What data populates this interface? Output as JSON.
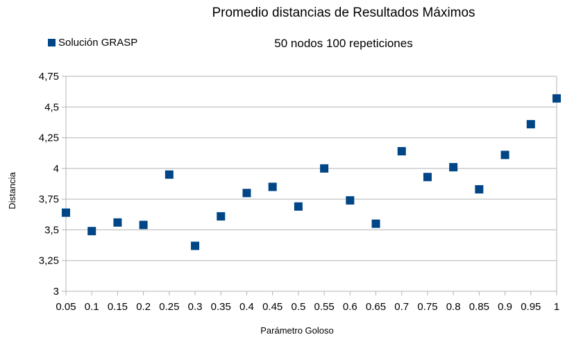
{
  "chart_data": {
    "type": "scatter",
    "title": "Promedio distancias de Resultados Máximos",
    "subtitle": "50 nodos 100 repeticiones",
    "xlabel": "Parámetro Goloso",
    "ylabel": "Distancia",
    "categories": [
      "0.05",
      "0.1",
      "0.15",
      "0.2",
      "0.25",
      "0.3",
      "0.35",
      "0.4",
      "0.45",
      "0.5",
      "0.55",
      "0.6",
      "0.65",
      "0.7",
      "0.75",
      "0.8",
      "0.85",
      "0.9",
      "0.95",
      "1"
    ],
    "yticks": [
      "3",
      "3,25",
      "3,5",
      "3,75",
      "4",
      "4,25",
      "4,5",
      "4,75"
    ],
    "ylim": [
      3,
      4.75
    ],
    "grid": true,
    "legend_position": "top-left",
    "marker_color": "#004586",
    "series": [
      {
        "name": "Solución GRASP",
        "values": [
          3.64,
          3.49,
          3.56,
          3.54,
          3.95,
          3.37,
          3.61,
          3.8,
          3.85,
          3.69,
          4.0,
          3.74,
          3.55,
          4.14,
          3.93,
          4.01,
          3.83,
          4.11,
          4.36,
          4.57
        ]
      }
    ]
  }
}
